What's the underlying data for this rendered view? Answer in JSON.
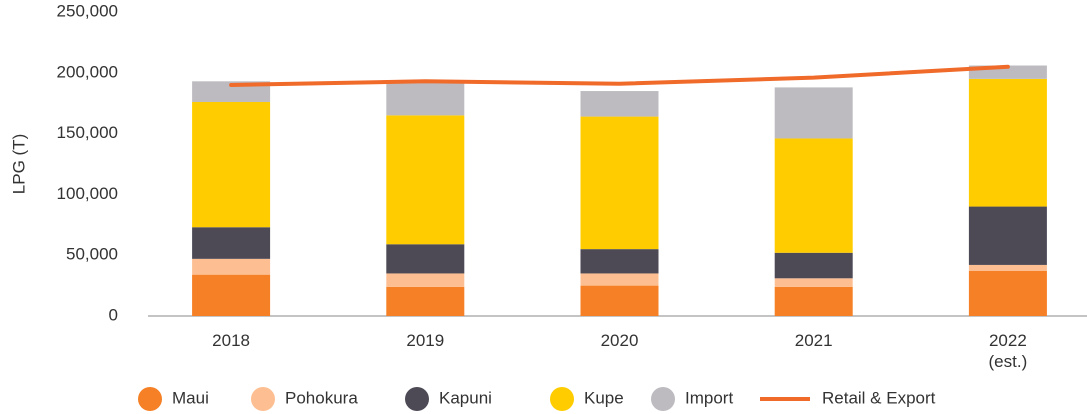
{
  "chart_data": {
    "type": "bar",
    "stacked": true,
    "y_label": "LPG (T)",
    "categories": [
      "2018",
      "2019",
      "2020",
      "2021",
      "2022 (est.)"
    ],
    "series": [
      {
        "name": "Maui",
        "color": "#f58025",
        "values": [
          34000,
          24000,
          25000,
          24000,
          37000
        ]
      },
      {
        "name": "Pohokura",
        "color": "#fdbf91",
        "values": [
          13000,
          11000,
          10000,
          7000,
          5000
        ]
      },
      {
        "name": "Kapuni",
        "color": "#4d4a56",
        "values": [
          26000,
          24000,
          20000,
          21000,
          48000
        ]
      },
      {
        "name": "Kupe",
        "color": "#ffcc00",
        "values": [
          103000,
          106000,
          109000,
          94000,
          105000
        ]
      },
      {
        "name": "Import",
        "color": "#bdbbc0",
        "values": [
          17000,
          27000,
          21000,
          42000,
          11000
        ]
      },
      {
        "name": "Retail & Export",
        "type": "line",
        "color": "#f06a2a",
        "values": [
          190000,
          193000,
          191000,
          196000,
          205000
        ]
      }
    ],
    "ylim": [
      0,
      250000
    ],
    "yticks": [
      {
        "value": 0,
        "label": "0"
      },
      {
        "value": 50000,
        "label": "50,000"
      },
      {
        "value": 100000,
        "label": "100,000"
      },
      {
        "value": 150000,
        "label": "150,000"
      },
      {
        "value": 200000,
        "label": "200,000"
      },
      {
        "value": 250000,
        "label": "250,000"
      }
    ],
    "grid": false
  }
}
